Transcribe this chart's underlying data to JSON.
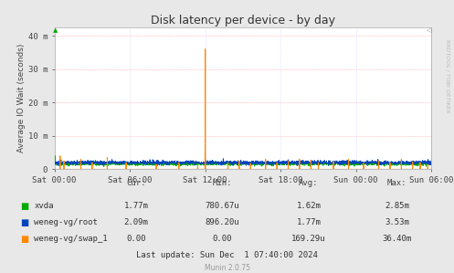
{
  "title": "Disk latency per device - by day",
  "ylabel": "Average IO Wait (seconds)",
  "background_color": "#e8e8e8",
  "plot_bg_color": "#ffffff",
  "grid_color_h": "#ff9999",
  "grid_color_v": "#ccccff",
  "x_ticks_labels": [
    "Sat 00:00",
    "Sat 06:00",
    "Sat 12:00",
    "Sat 18:00",
    "Sun 00:00",
    "Sun 06:00"
  ],
  "y_ticks_labels": [
    "0",
    "10 m",
    "20 m",
    "30 m",
    "40 m"
  ],
  "y_ticks_vals": [
    0,
    0.01,
    0.02,
    0.03,
    0.04
  ],
  "ylim": [
    0,
    0.0425
  ],
  "n_points": 2000,
  "xvda_color": "#00aa00",
  "root_color": "#0044bb",
  "swap_color": "#ff8800",
  "legend_items": [
    {
      "label": "xvda",
      "color": "#00aa00"
    },
    {
      "label": "weneg-vg/root",
      "color": "#0044bb"
    },
    {
      "label": "weneg-vg/swap_1",
      "color": "#ff8800"
    }
  ],
  "cur_vals": [
    "1.77m",
    "2.09m",
    "0.00"
  ],
  "min_vals": [
    "780.67u",
    "896.20u",
    "0.00"
  ],
  "avg_vals": [
    "1.62m",
    "1.77m",
    "169.29u"
  ],
  "max_vals": [
    "2.85m",
    "3.53m",
    "36.40m"
  ],
  "footer": "Last update: Sun Dec  1 07:40:00 2024",
  "munin_version": "Munin 2.0.75",
  "rrdtool_text": "RRDTOOL / TOBI OETIKER"
}
